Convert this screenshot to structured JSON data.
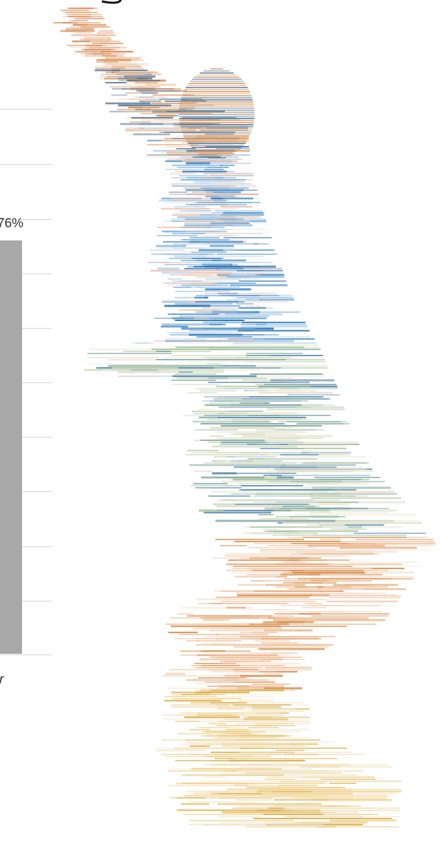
{
  "label": "76%",
  "fragment": "r"
}
